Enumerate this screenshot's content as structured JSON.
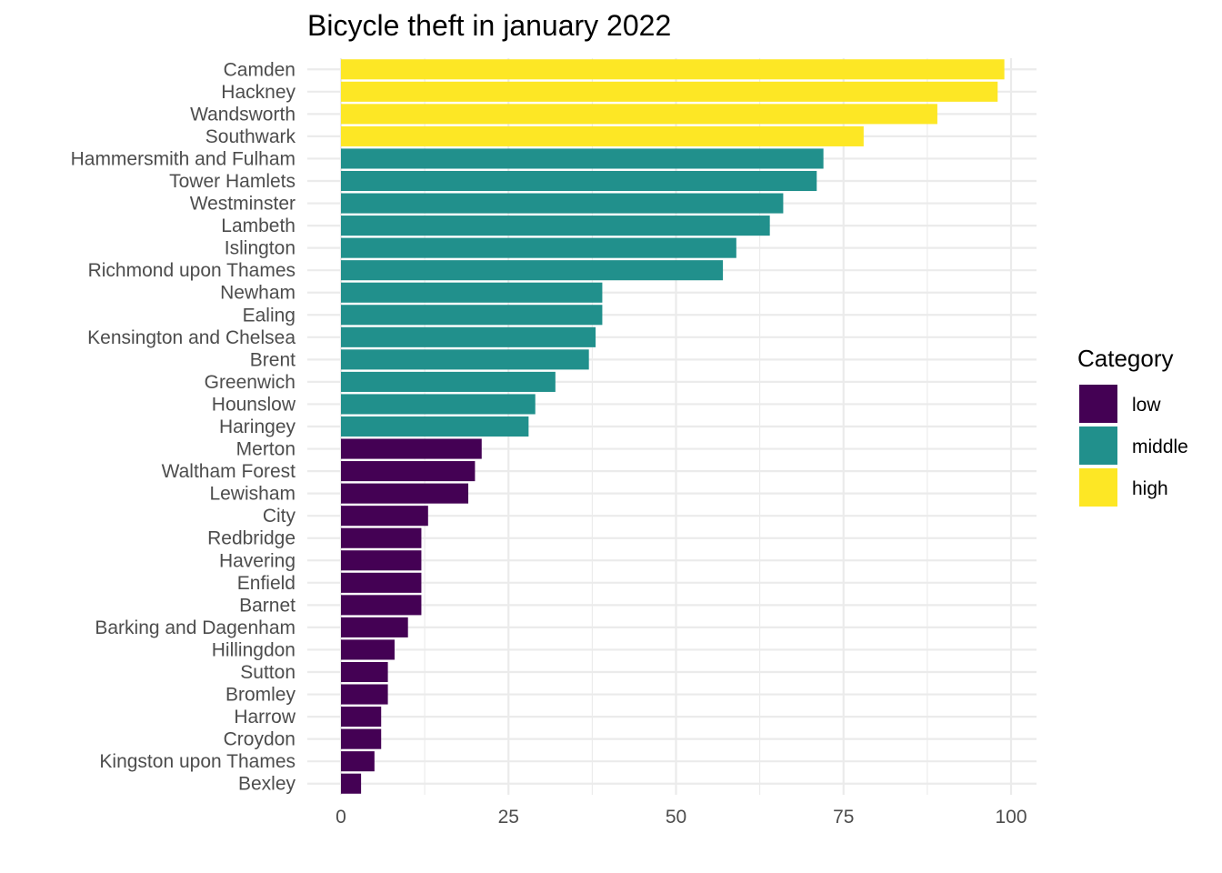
{
  "chart_data": {
    "type": "bar",
    "orientation": "horizontal",
    "title": "Bicycle theft in january 2022",
    "xlabel": "",
    "ylabel": "",
    "xlim": [
      0,
      100
    ],
    "x_ticks": [
      0,
      25,
      50,
      75,
      100
    ],
    "grid": true,
    "legend": {
      "title": "Category",
      "placement": "right",
      "entries": [
        {
          "label": "low",
          "color": "#440154"
        },
        {
          "label": "middle",
          "color": "#21908C"
        },
        {
          "label": "high",
          "color": "#FDE725"
        }
      ]
    },
    "categories": [
      "Camden",
      "Hackney",
      "Wandsworth",
      "Southwark",
      "Hammersmith and Fulham",
      "Tower Hamlets",
      "Westminster",
      "Lambeth",
      "Islington",
      "Richmond upon Thames",
      "Newham",
      "Ealing",
      "Kensington and Chelsea",
      "Brent",
      "Greenwich",
      "Hounslow",
      "Haringey",
      "Merton",
      "Waltham Forest",
      "Lewisham",
      "City",
      "Redbridge",
      "Havering",
      "Enfield",
      "Barnet",
      "Barking and Dagenham",
      "Hillingdon",
      "Sutton",
      "Bromley",
      "Harrow",
      "Croydon",
      "Kingston upon Thames",
      "Bexley"
    ],
    "values": [
      99,
      98,
      89,
      78,
      72,
      71,
      66,
      64,
      59,
      57,
      39,
      39,
      38,
      37,
      32,
      29,
      28,
      21,
      20,
      19,
      13,
      12,
      12,
      12,
      12,
      10,
      8,
      7,
      7,
      6,
      6,
      5,
      3
    ],
    "category_group": [
      "high",
      "high",
      "high",
      "high",
      "middle",
      "middle",
      "middle",
      "middle",
      "middle",
      "middle",
      "middle",
      "middle",
      "middle",
      "middle",
      "middle",
      "middle",
      "middle",
      "low",
      "low",
      "low",
      "low",
      "low",
      "low",
      "low",
      "low",
      "low",
      "low",
      "low",
      "low",
      "low",
      "low",
      "low",
      "low"
    ]
  }
}
